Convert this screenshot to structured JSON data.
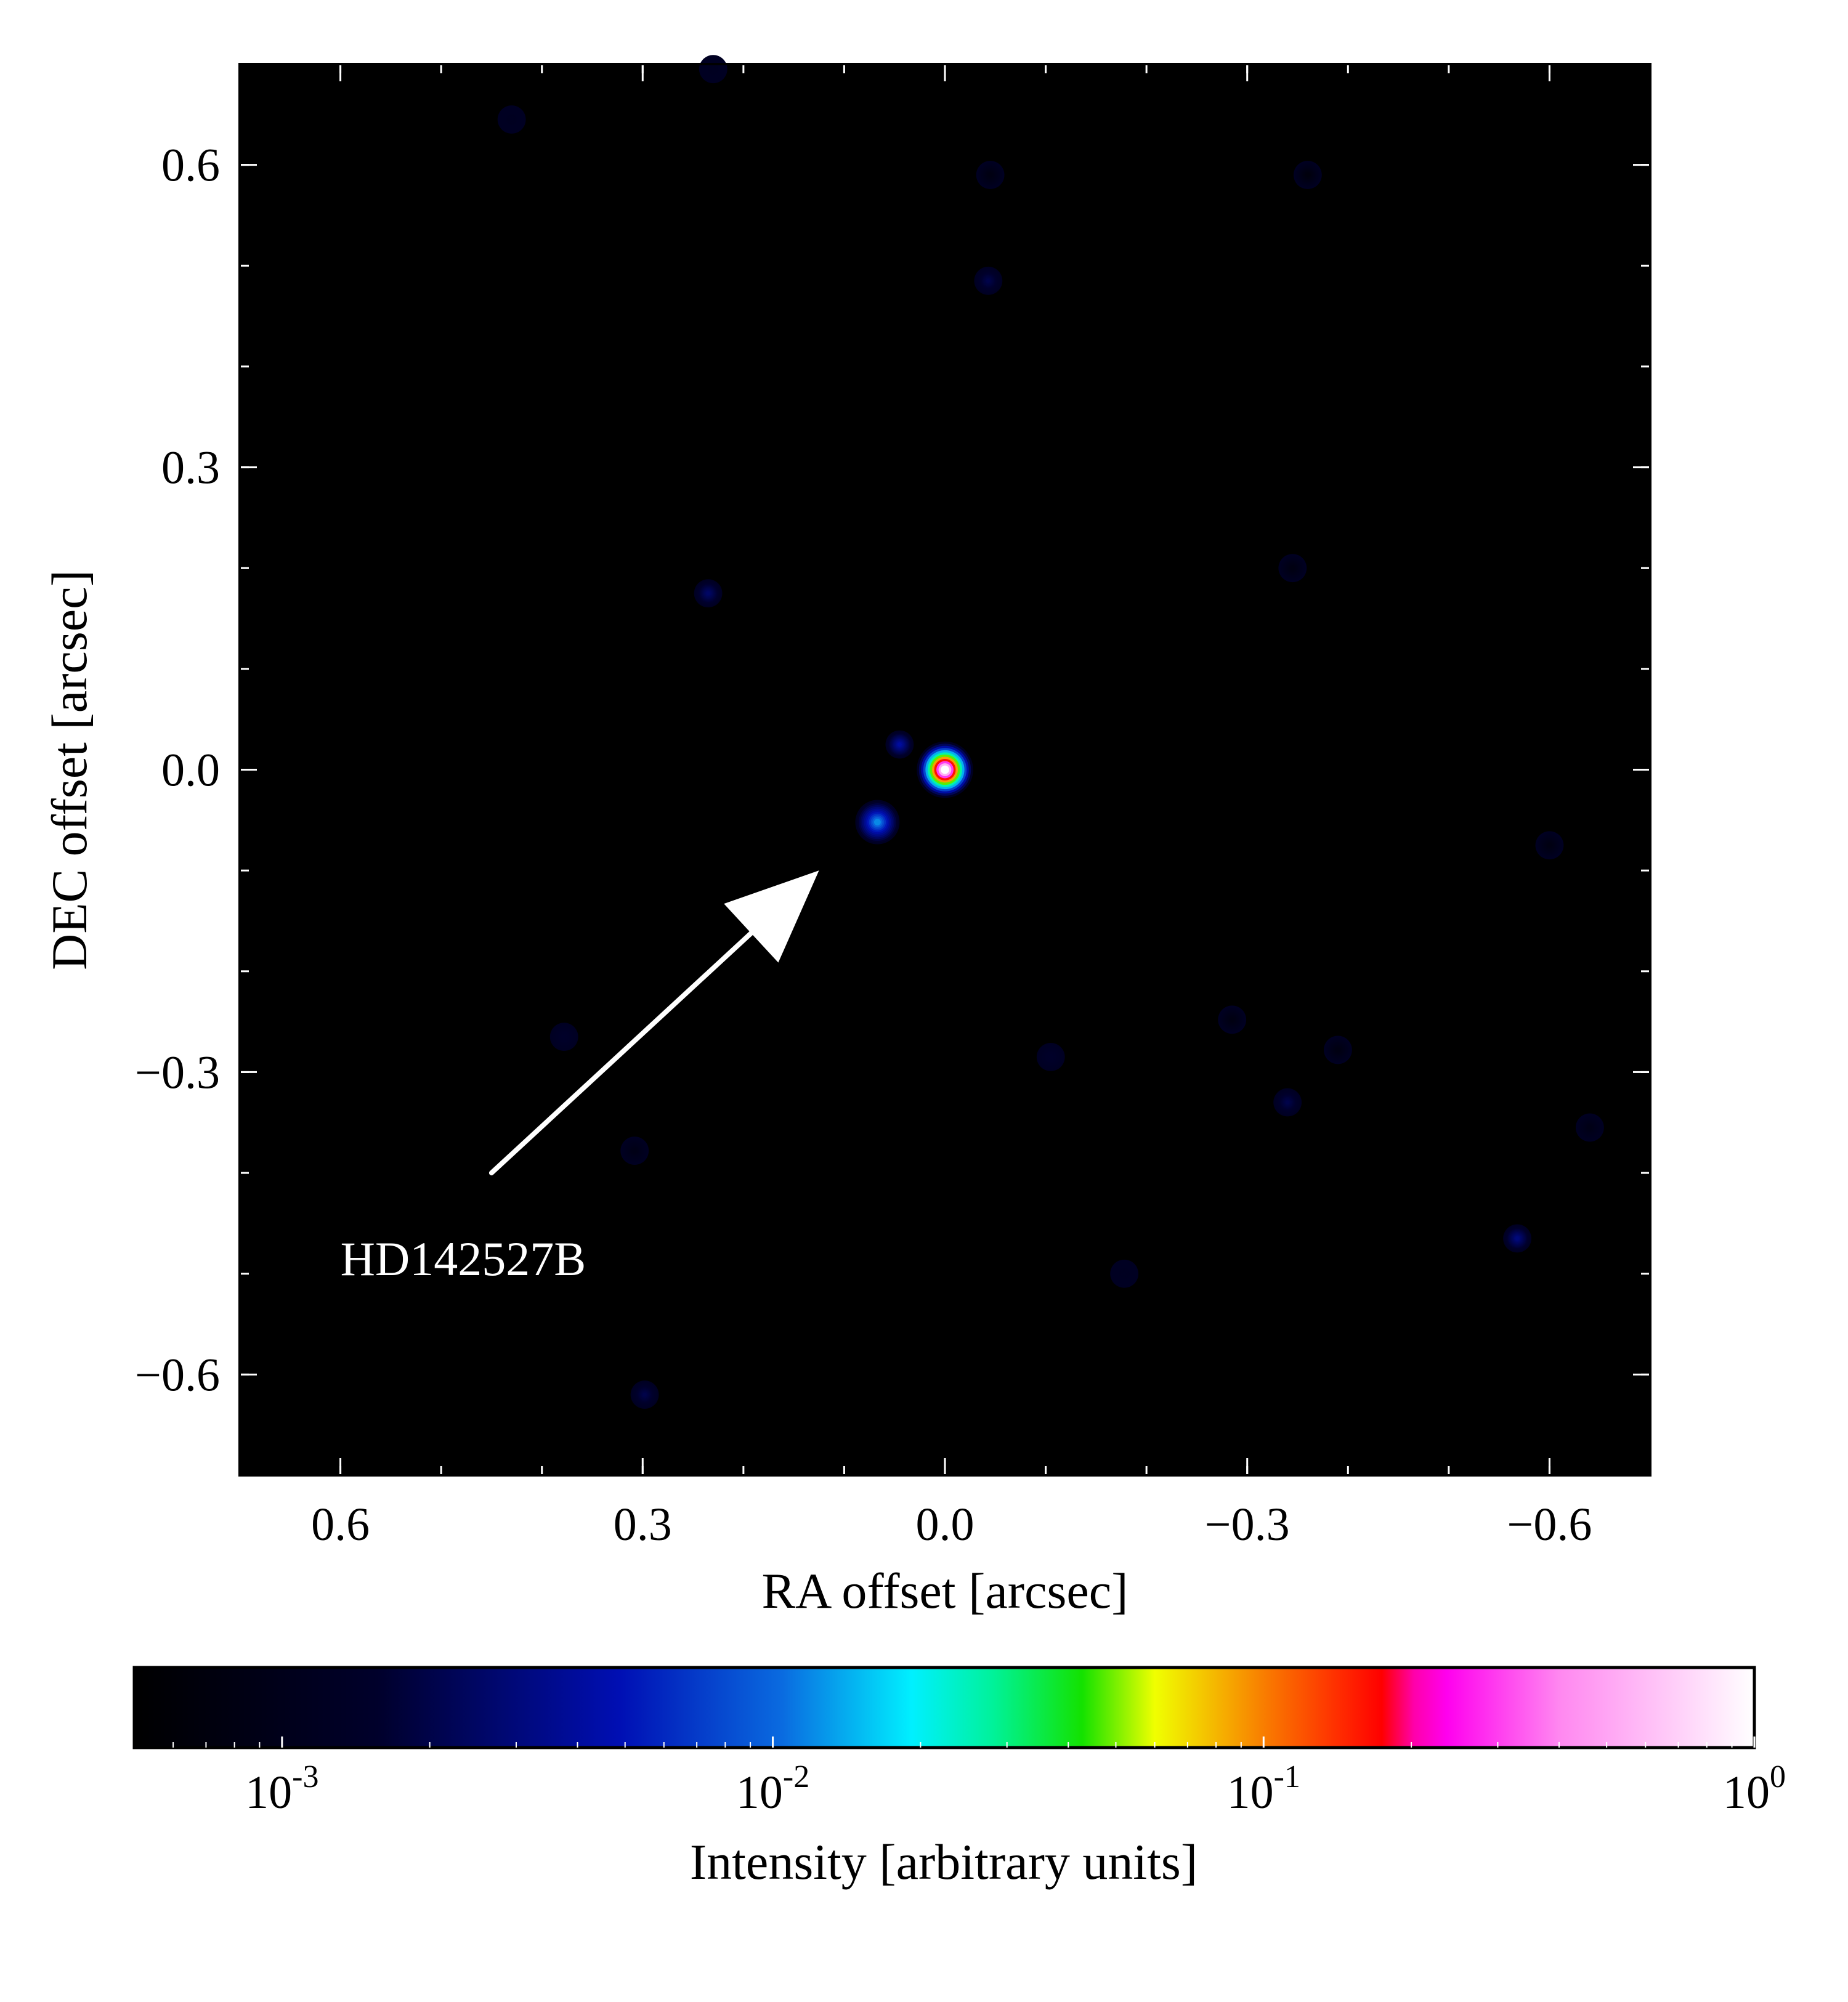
{
  "chart_data": {
    "type": "heatmap",
    "title": "",
    "xlabel": "RA offset [arcsec]",
    "ylabel": "DEC offset [arcsec]",
    "xlim": [
      0.7,
      -0.7
    ],
    "ylim": [
      -0.7,
      0.7
    ],
    "x_inverted": true,
    "background_color": "#000000",
    "x_ticks": [
      {
        "value": 0.6,
        "label": "0.6"
      },
      {
        "value": 0.3,
        "label": "0.3"
      },
      {
        "value": 0.0,
        "label": "0.0"
      },
      {
        "value": -0.3,
        "label": "−0.3"
      },
      {
        "value": -0.6,
        "label": "−0.6"
      }
    ],
    "y_ticks": [
      {
        "value": 0.6,
        "label": "0.6"
      },
      {
        "value": 0.3,
        "label": "0.3"
      },
      {
        "value": 0.0,
        "label": "0.0"
      },
      {
        "value": -0.3,
        "label": "−0.3"
      },
      {
        "value": -0.6,
        "label": "−0.6"
      }
    ],
    "x_minor_step": 0.1,
    "y_minor_step": 0.1,
    "sources": [
      {
        "ra": 0.0,
        "dec": 0.0,
        "intensity": 1.0
      },
      {
        "ra": 0.067,
        "dec": -0.052,
        "intensity": 0.012
      },
      {
        "ra": 0.045,
        "dec": 0.025,
        "intensity": 0.004
      },
      {
        "ra": 0.235,
        "dec": 0.175,
        "intensity": 0.0025
      },
      {
        "ra": -0.043,
        "dec": 0.485,
        "intensity": 0.002
      },
      {
        "ra": 0.298,
        "dec": -0.62,
        "intensity": 0.002
      },
      {
        "ra": -0.568,
        "dec": -0.465,
        "intensity": 0.003
      },
      {
        "ra": -0.34,
        "dec": -0.33,
        "intensity": 0.002
      },
      {
        "ra": -0.105,
        "dec": -0.285,
        "intensity": 0.0015
      },
      {
        "ra": 0.378,
        "dec": -0.265,
        "intensity": 0.0015
      },
      {
        "ra": -0.178,
        "dec": -0.5,
        "intensity": 0.0012
      },
      {
        "ra": 0.43,
        "dec": 0.645,
        "intensity": 0.0012
      },
      {
        "ra": 0.23,
        "dec": 0.695,
        "intensity": 0.0012
      },
      {
        "ra": -0.345,
        "dec": 0.2,
        "intensity": 0.0008
      },
      {
        "ra": -0.39,
        "dec": -0.278,
        "intensity": 0.0008
      },
      {
        "ra": -0.64,
        "dec": -0.355,
        "intensity": 0.0009
      },
      {
        "ra": 0.308,
        "dec": -0.378,
        "intensity": 0.0009
      },
      {
        "ra": -0.045,
        "dec": 0.59,
        "intensity": 0.0008
      },
      {
        "ra": -0.36,
        "dec": 0.59,
        "intensity": 0.0007
      },
      {
        "ra": -0.6,
        "dec": -0.075,
        "intensity": 0.0008
      },
      {
        "ra": -0.285,
        "dec": -0.248,
        "intensity": 0.0008
      }
    ],
    "annotations": [
      {
        "text": "HD142527B",
        "text_ra": 0.6,
        "text_dec": -0.485,
        "arrow_from": [
          0.45,
          -0.4
        ],
        "arrow_to": [
          0.125,
          -0.1
        ]
      }
    ],
    "colorbar": {
      "label": "Intensity [arbitrary units]",
      "scale": "log",
      "range": [
        0.0005,
        1.0
      ],
      "ticks": [
        {
          "value": 0.001,
          "base": "10",
          "exp": "-3"
        },
        {
          "value": 0.01,
          "base": "10",
          "exp": "-2"
        },
        {
          "value": 0.1,
          "base": "10",
          "exp": "-1"
        },
        {
          "value": 1.0,
          "base": "10",
          "exp": "0"
        }
      ],
      "colormap": [
        {
          "pos": 0.0,
          "color": "#000000"
        },
        {
          "pos": 0.15,
          "color": "#00002b"
        },
        {
          "pos": 0.3,
          "color": "#000fb4"
        },
        {
          "pos": 0.4,
          "color": "#0a6be0"
        },
        {
          "pos": 0.48,
          "color": "#00f0ff"
        },
        {
          "pos": 0.53,
          "color": "#00f29a"
        },
        {
          "pos": 0.585,
          "color": "#13e200"
        },
        {
          "pos": 0.63,
          "color": "#f0ff00"
        },
        {
          "pos": 0.7,
          "color": "#f97800"
        },
        {
          "pos": 0.745,
          "color": "#ff2a00"
        },
        {
          "pos": 0.77,
          "color": "#ff0000"
        },
        {
          "pos": 0.79,
          "color": "#ff00aa"
        },
        {
          "pos": 0.81,
          "color": "#ff00ee"
        },
        {
          "pos": 0.88,
          "color": "#ff88f0"
        },
        {
          "pos": 1.0,
          "color": "#ffffff"
        }
      ]
    }
  }
}
